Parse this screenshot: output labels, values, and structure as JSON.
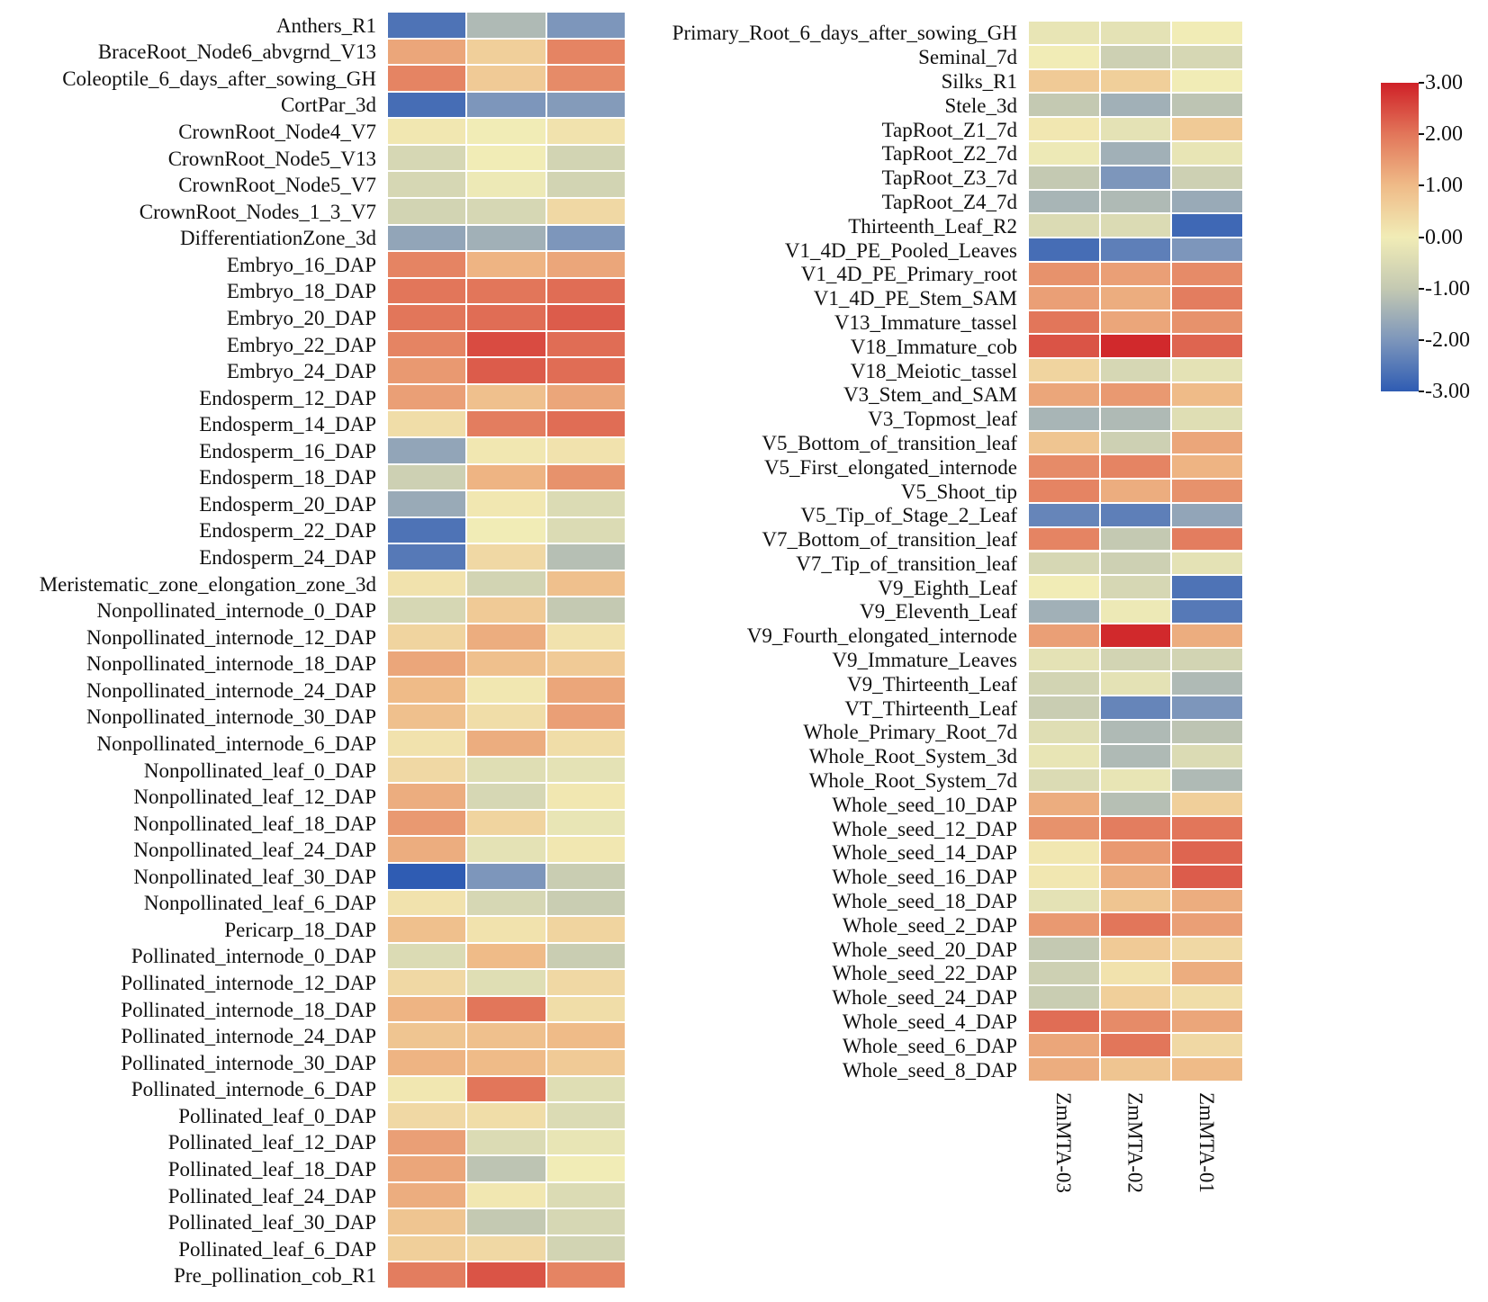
{
  "chart_data": [
    {
      "type": "heatmap",
      "title": "",
      "columns": [
        "ZmMTA-03",
        "ZmMTA-02",
        "ZmMTA-01"
      ],
      "rows": [
        "Anthers_R1",
        "BraceRoot_Node6_abvgrnd_V13",
        "Coleoptile_6_days_after_sowing_GH",
        "CortPar_3d",
        "CrownRoot_Node4_V7",
        "CrownRoot_Node5_V13",
        "CrownRoot_Node5_V7",
        "CrownRoot_Nodes_1_3_V7",
        "DifferentiationZone_3d",
        "Embryo_16_DAP",
        "Embryo_18_DAP",
        "Embryo_20_DAP",
        "Embryo_22_DAP",
        "Embryo_24_DAP",
        "Endosperm_12_DAP",
        "Endosperm_14_DAP",
        "Endosperm_16_DAP",
        "Endosperm_18_DAP",
        "Endosperm_20_DAP",
        "Endosperm_22_DAP",
        "Endosperm_24_DAP",
        "Meristematic_zone_elongation_zone_3d",
        "Nonpollinated_internode_0_DAP",
        "Nonpollinated_internode_12_DAP",
        "Nonpollinated_internode_18_DAP",
        "Nonpollinated_internode_24_DAP",
        "Nonpollinated_internode_30_DAP",
        "Nonpollinated_internode_6_DAP",
        "Nonpollinated_leaf_0_DAP",
        "Nonpollinated_leaf_12_DAP",
        "Nonpollinated_leaf_18_DAP",
        "Nonpollinated_leaf_24_DAP",
        "Nonpollinated_leaf_30_DAP",
        "Nonpollinated_leaf_6_DAP",
        "Pericarp_18_DAP",
        "Pollinated_internode_0_DAP",
        "Pollinated_internode_12_DAP",
        "Pollinated_internode_18_DAP",
        "Pollinated_internode_24_DAP",
        "Pollinated_internode_30_DAP",
        "Pollinated_internode_6_DAP",
        "Pollinated_leaf_0_DAP",
        "Pollinated_leaf_12_DAP",
        "Pollinated_leaf_18_DAP",
        "Pollinated_leaf_24_DAP",
        "Pollinated_leaf_30_DAP",
        "Pollinated_leaf_6_DAP",
        "Pre_pollination_cob_R1"
      ],
      "values": [
        [
          -2.6,
          -1.3,
          -2.0
        ],
        [
          1.3,
          0.6,
          1.8
        ],
        [
          1.8,
          0.7,
          1.7
        ],
        [
          -2.7,
          -2.0,
          -1.9
        ],
        [
          0.1,
          0.0,
          0.2
        ],
        [
          -0.6,
          0.0,
          -0.7
        ],
        [
          -0.6,
          -0.1,
          -0.7
        ],
        [
          -0.7,
          -0.6,
          0.4
        ],
        [
          -1.7,
          -1.5,
          -2.0
        ],
        [
          1.8,
          1.1,
          1.3
        ],
        [
          2.0,
          2.0,
          2.1
        ],
        [
          2.0,
          2.1,
          2.3
        ],
        [
          1.8,
          2.5,
          2.1
        ],
        [
          1.5,
          2.3,
          2.1
        ],
        [
          1.4,
          0.9,
          1.3
        ],
        [
          0.3,
          1.9,
          2.1
        ],
        [
          -1.7,
          0.1,
          0.2
        ],
        [
          -0.8,
          1.1,
          1.6
        ],
        [
          -1.6,
          0.1,
          -0.5
        ],
        [
          -2.6,
          0.0,
          -0.5
        ],
        [
          -2.5,
          0.4,
          -1.2
        ],
        [
          0.2,
          -0.7,
          0.9
        ],
        [
          -0.6,
          0.7,
          -1.0
        ],
        [
          0.5,
          1.2,
          0.2
        ],
        [
          1.3,
          0.9,
          0.7
        ],
        [
          1.0,
          0.1,
          1.3
        ],
        [
          0.9,
          0.3,
          1.4
        ],
        [
          0.2,
          1.2,
          0.3
        ],
        [
          0.4,
          -0.4,
          -0.3
        ],
        [
          1.2,
          -0.6,
          0.1
        ],
        [
          1.5,
          0.5,
          -0.2
        ],
        [
          1.2,
          -0.3,
          0.1
        ],
        [
          -3.0,
          -2.0,
          -0.9
        ],
        [
          0.2,
          -0.6,
          -0.9
        ],
        [
          0.9,
          0.2,
          0.5
        ],
        [
          -0.5,
          1.0,
          -0.9
        ],
        [
          0.4,
          -0.4,
          0.4
        ],
        [
          1.1,
          2.0,
          0.3
        ],
        [
          0.8,
          0.9,
          1.0
        ],
        [
          1.1,
          1.0,
          0.7
        ],
        [
          0.1,
          2.0,
          -0.4
        ],
        [
          0.4,
          0.3,
          -0.5
        ],
        [
          1.4,
          -0.5,
          -0.2
        ],
        [
          1.3,
          -1.1,
          0.0
        ],
        [
          1.2,
          0.1,
          -0.5
        ],
        [
          0.8,
          -1.0,
          -0.6
        ],
        [
          0.6,
          0.4,
          -0.7
        ],
        [
          1.9,
          2.4,
          1.8
        ]
      ]
    },
    {
      "type": "heatmap",
      "title": "",
      "columns": [
        "ZmMTA-03",
        "ZmMTA-02",
        "ZmMTA-01"
      ],
      "rows": [
        "Primary_Root_6_days_after_sowing_GH",
        "Seminal_7d",
        "Silks_R1",
        "Stele_3d",
        "TapRoot_Z1_7d",
        "TapRoot_Z2_7d",
        "TapRoot_Z3_7d",
        "TapRoot_Z4_7d",
        "Thirteenth_Leaf_R2",
        "V1_4D_PE_Pooled_Leaves",
        "V1_4D_PE_Primary_root",
        "V1_4D_PE_Stem_SAM",
        "V13_Immature_tassel",
        "V18_Immature_cob",
        "V18_Meiotic_tassel",
        "V3_Stem_and_SAM",
        "V3_Topmost_leaf",
        "V5_Bottom_of_transition_leaf",
        "V5_First_elongated_internode",
        "V5_Shoot_tip",
        "V5_Tip_of_Stage_2_Leaf",
        "V7_Bottom_of_transition_leaf",
        "V7_Tip_of_transition_leaf",
        "V9_Eighth_Leaf",
        "V9_Eleventh_Leaf",
        "V9_Fourth_elongated_internode",
        "V9_Immature_Leaves",
        "V9_Thirteenth_Leaf",
        "VT_Thirteenth_Leaf",
        "Whole_Primary_Root_7d",
        "Whole_Root_System_3d",
        "Whole_Root_System_7d",
        "Whole_seed_10_DAP",
        "Whole_seed_12_DAP",
        "Whole_seed_14_DAP",
        "Whole_seed_16_DAP",
        "Whole_seed_18_DAP",
        "Whole_seed_2_DAP",
        "Whole_seed_20_DAP",
        "Whole_seed_22_DAP",
        "Whole_seed_24_DAP",
        "Whole_seed_4_DAP",
        "Whole_seed_6_DAP",
        "Whole_seed_8_DAP"
      ],
      "values": [
        [
          -0.2,
          -0.3,
          0.0
        ],
        [
          0.0,
          -0.8,
          -0.6
        ],
        [
          0.7,
          0.6,
          0.0
        ],
        [
          -1.0,
          -1.5,
          -1.1
        ],
        [
          0.1,
          -0.3,
          0.7
        ],
        [
          -0.1,
          -1.5,
          -0.2
        ],
        [
          -1.0,
          -2.0,
          -0.8
        ],
        [
          -1.4,
          -1.3,
          -1.6
        ],
        [
          -0.5,
          -0.5,
          -2.8
        ],
        [
          -2.7,
          -2.4,
          -2.0
        ],
        [
          1.6,
          1.4,
          1.7
        ],
        [
          1.4,
          1.2,
          1.9
        ],
        [
          2.0,
          1.3,
          1.6
        ],
        [
          2.4,
          2.9,
          2.2
        ],
        [
          0.5,
          -0.6,
          -0.3
        ],
        [
          1.3,
          1.5,
          1.0
        ],
        [
          -1.4,
          -1.3,
          -0.4
        ],
        [
          0.8,
          -0.8,
          1.3
        ],
        [
          1.7,
          1.8,
          1.1
        ],
        [
          1.8,
          1.2,
          1.6
        ],
        [
          -2.3,
          -2.4,
          -1.7
        ],
        [
          1.8,
          -1.0,
          1.9
        ],
        [
          -0.6,
          -0.8,
          -0.3
        ],
        [
          0.0,
          -0.6,
          -2.6
        ],
        [
          -1.5,
          -0.1,
          -2.5
        ],
        [
          1.4,
          2.9,
          1.2
        ],
        [
          -0.3,
          -0.7,
          -0.7
        ],
        [
          -0.7,
          -0.3,
          -1.3
        ],
        [
          -0.9,
          -2.3,
          -2.0
        ],
        [
          -0.4,
          -1.3,
          -1.1
        ],
        [
          -0.2,
          -1.3,
          -0.5
        ],
        [
          -0.5,
          -0.2,
          -1.3
        ],
        [
          1.2,
          -1.2,
          0.6
        ],
        [
          1.6,
          1.9,
          2.0
        ],
        [
          0.1,
          1.5,
          2.2
        ],
        [
          0.1,
          1.2,
          2.3
        ],
        [
          -0.3,
          0.8,
          1.2
        ],
        [
          1.5,
          2.0,
          1.4
        ],
        [
          -1.0,
          0.7,
          0.4
        ],
        [
          -0.8,
          0.2,
          1.2
        ],
        [
          -0.9,
          0.6,
          0.3
        ],
        [
          2.1,
          1.7,
          1.3
        ],
        [
          1.3,
          2.0,
          0.4
        ],
        [
          1.2,
          0.8,
          1.0
        ]
      ]
    }
  ],
  "colorbar": {
    "min": -3,
    "max": 3,
    "tick_labels": [
      "3.00",
      "2.00",
      "1.00",
      "0.00",
      "-1.00",
      "-2.00",
      "-3.00"
    ],
    "tick_values": [
      3,
      2,
      1,
      0,
      -1,
      -2,
      -3
    ],
    "stops": [
      {
        "value": -3,
        "color": "#2f5cb3"
      },
      {
        "value": -2,
        "color": "#7d96bb"
      },
      {
        "value": -1,
        "color": "#c4c9b2"
      },
      {
        "value": 0,
        "color": "#f1ecb6"
      },
      {
        "value": 1,
        "color": "#efbb88"
      },
      {
        "value": 2,
        "color": "#e2765a"
      },
      {
        "value": 3,
        "color": "#cf2027"
      }
    ]
  }
}
